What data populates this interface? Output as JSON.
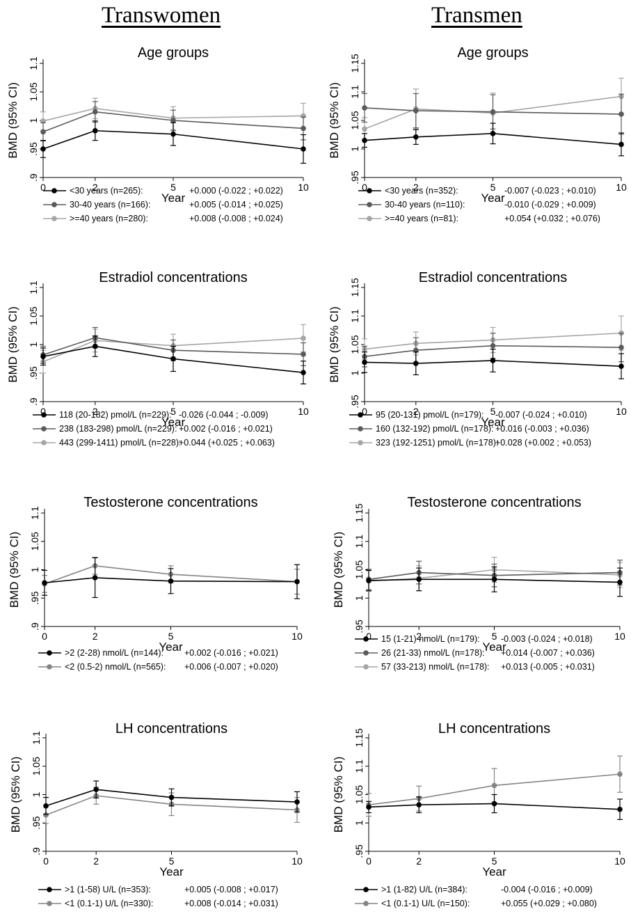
{
  "columns": {
    "left": "Transwomen",
    "right": "Transmen"
  },
  "chart_data": [
    {
      "type": "line",
      "column": "Transwomen",
      "title": "Age groups",
      "xlabel": "Year",
      "ylabel": "BMD (95% CI)",
      "x": [
        0,
        2,
        5,
        10
      ],
      "xticks": [
        "0",
        "2",
        "5",
        "10"
      ],
      "ylim": [
        0.9,
        1.1
      ],
      "yticks": [
        ".9",
        ".95",
        "1",
        "1.05",
        "1.1"
      ],
      "series": [
        {
          "label": "<30 years (n=265):",
          "stats": "+0.000 (-0.022 ; +0.022)",
          "color": "#000000",
          "values": [
            0.95,
            0.982,
            0.976,
            0.95
          ],
          "err": [
            0.015,
            0.017,
            0.02,
            0.025
          ]
        },
        {
          "label": "30-40 years (n=166):",
          "stats": "+0.005 (-0.014 ; +0.025)",
          "color": "#5a5a5a",
          "values": [
            0.98,
            1.015,
            1.0,
            0.986
          ],
          "err": [
            0.016,
            0.018,
            0.018,
            0.02
          ]
        },
        {
          "label": ">=40 years (n=280):",
          "stats": "+0.008 (-0.008 ; +0.024)",
          "color": "#a5a5a5",
          "values": [
            0.999,
            1.021,
            1.004,
            1.008
          ],
          "err": [
            0.016,
            0.018,
            0.02,
            0.022
          ]
        }
      ]
    },
    {
      "type": "line",
      "column": "Transmen",
      "title": "Age groups",
      "xlabel": "Year",
      "ylabel": "BMD (95% CI)",
      "x": [
        0,
        2,
        5,
        10
      ],
      "xticks": [
        "0",
        "2",
        "5",
        "10"
      ],
      "ylim": [
        0.95,
        1.15
      ],
      "yticks": [
        ".95",
        "1",
        "1.05",
        "1.1",
        "1.15"
      ],
      "series": [
        {
          "label": "<30 years (n=352):",
          "stats": "-0.007 (-0.023 ; +0.010)",
          "color": "#000000",
          "values": [
            1.015,
            1.021,
            1.027,
            1.008
          ],
          "err": [
            0.012,
            0.013,
            0.018,
            0.02
          ]
        },
        {
          "label": "30-40 years (n=110):",
          "stats": "-0.010 (-0.029 ; +0.009)",
          "color": "#5a5a5a",
          "values": [
            1.072,
            1.067,
            1.065,
            1.061
          ],
          "err": [
            0.025,
            0.03,
            0.03,
            0.035
          ]
        },
        {
          "label": ">=40 years (n=81):",
          "stats": "+0.054 (+0.032 ; +0.076)",
          "color": "#a5a5a5",
          "values": [
            1.035,
            1.07,
            1.063,
            1.092
          ],
          "err": [
            0.02,
            0.035,
            0.035,
            0.032
          ]
        }
      ]
    },
    {
      "type": "line",
      "column": "Transwomen",
      "title": "Estradiol concentrations",
      "xlabel": "Year",
      "ylabel": "BMD (95% CI)",
      "x": [
        0,
        2,
        5,
        10
      ],
      "xticks": [
        "0",
        "2",
        "5",
        "10"
      ],
      "ylim": [
        0.9,
        1.1
      ],
      "yticks": [
        ".9",
        ".95",
        "1",
        "1.05",
        "1.1"
      ],
      "series": [
        {
          "label": "118 (20-182) pmol/L (n=229):",
          "stats": "-0.026 (-0.044 ; -0.009)",
          "color": "#000000",
          "values": [
            0.979,
            0.997,
            0.975,
            0.951
          ],
          "err": [
            0.015,
            0.018,
            0.022,
            0.02
          ]
        },
        {
          "label": "238 (183-298) pmol/L (n=229):",
          "stats": "+0.002 (-0.016 ; +0.021)",
          "color": "#5a5a5a",
          "values": [
            0.982,
            1.012,
            0.99,
            0.983
          ],
          "err": [
            0.015,
            0.018,
            0.018,
            0.02
          ]
        },
        {
          "label": "443 (299-1411) pmol/L (n=228):",
          "stats": "+0.044 (+0.025 ; +0.063)",
          "color": "#a5a5a5",
          "values": [
            0.97,
            1.007,
            0.998,
            1.011
          ],
          "err": [
            0.02,
            0.02,
            0.02,
            0.024
          ]
        }
      ]
    },
    {
      "type": "line",
      "column": "Transmen",
      "title": "Estradiol concentrations",
      "xlabel": "Year",
      "ylabel": "BMD (95% CI)",
      "x": [
        0,
        2,
        5,
        10
      ],
      "xticks": [
        "0",
        "2",
        "5",
        "10"
      ],
      "ylim": [
        0.95,
        1.15
      ],
      "yticks": [
        ".95",
        "1",
        "1.05",
        "1.1",
        "1.15"
      ],
      "series": [
        {
          "label": "95 (20-131) pmol/L (n=179):",
          "stats": "-0.007 (-0.024 ; +0.010)",
          "color": "#000000",
          "values": [
            1.019,
            1.017,
            1.022,
            1.012
          ],
          "err": [
            0.018,
            0.02,
            0.02,
            0.022
          ]
        },
        {
          "label": "160 (132-192) pmol/L (n=178):",
          "stats": "+0.016 (-0.003 ; +0.036)",
          "color": "#5a5a5a",
          "values": [
            1.029,
            1.04,
            1.048,
            1.045
          ],
          "err": [
            0.018,
            0.022,
            0.022,
            0.025
          ]
        },
        {
          "label": "323 (192-1251) pmol/L (n=178):",
          "stats": "+0.028 (+0.002 ; +0.053)",
          "color": "#a5a5a5",
          "values": [
            1.042,
            1.052,
            1.058,
            1.07
          ],
          "err": [
            0.018,
            0.02,
            0.022,
            0.03
          ]
        }
      ]
    },
    {
      "type": "line",
      "column": "Transwomen",
      "title": "Testosterone concentrations",
      "xlabel": "Year",
      "ylabel": "BMD (95% CI)",
      "x": [
        0,
        2,
        5,
        10
      ],
      "xticks": [
        "0",
        "2",
        "5",
        "10"
      ],
      "ylim": [
        0.9,
        1.1
      ],
      "yticks": [
        ".9",
        ".95",
        "1",
        "1.05",
        "1.1"
      ],
      "series": [
        {
          "label": ">2 (2-28) nmol/L (n=144):",
          "stats": "+0.002 (-0.016 ; +0.021)",
          "color": "#000000",
          "values": [
            0.977,
            0.986,
            0.98,
            0.979
          ],
          "err": [
            0.022,
            0.035,
            0.022,
            0.03
          ]
        },
        {
          "label": "<2 (0.5-2) nmol/L (n=565):",
          "stats": "+0.006 (-0.007 ; +0.020)",
          "color": "#848484",
          "values": [
            0.975,
            1.007,
            0.992,
            0.979
          ],
          "err": [
            0.015,
            0.015,
            0.015,
            0.022
          ]
        }
      ]
    },
    {
      "type": "line",
      "column": "Transmen",
      "title": "Testosterone concentrations",
      "xlabel": "Year",
      "ylabel": "BMD (95% CI)",
      "x": [
        0,
        2,
        5,
        10
      ],
      "xticks": [
        "0",
        "2",
        "5",
        "10"
      ],
      "ylim": [
        0.95,
        1.15
      ],
      "yticks": [
        ".95",
        "1",
        "1.05",
        "1.1",
        "1.15"
      ],
      "series": [
        {
          "label": "15 (1-21) nmol/L (n=179):",
          "stats": "-0.003 (-0.024 ; +0.018)",
          "color": "#000000",
          "values": [
            1.031,
            1.033,
            1.033,
            1.028
          ],
          "err": [
            0.018,
            0.02,
            0.022,
            0.025
          ]
        },
        {
          "label": "26 (21-33) nmol/L (n=178):",
          "stats": "+0.014 (-0.007 ; +0.036)",
          "color": "#5a5a5a",
          "values": [
            1.033,
            1.045,
            1.04,
            1.045
          ],
          "err": [
            0.018,
            0.02,
            0.02,
            0.022
          ]
        },
        {
          "label": "57 (33-213) nmol/L (n=178):",
          "stats": "+0.013 (-0.005 ; +0.031)",
          "color": "#a5a5a5",
          "values": [
            1.03,
            1.035,
            1.05,
            1.041
          ],
          "err": [
            0.018,
            0.022,
            0.022,
            0.022
          ]
        }
      ]
    },
    {
      "type": "line",
      "column": "Transwomen",
      "title": "LH concentrations",
      "xlabel": "Year",
      "ylabel": "BMD (95% CI)",
      "x": [
        0,
        2,
        5,
        10
      ],
      "xticks": [
        "0",
        "2",
        "5",
        "10"
      ],
      "ylim": [
        0.9,
        1.1
      ],
      "yticks": [
        ".9",
        ".95",
        "1",
        "1.05",
        "1.1"
      ],
      "series": [
        {
          "label": ">1 (1-58) U/L (n=353):",
          "stats": "+0.005 (-0.008 ; +0.017)",
          "color": "#000000",
          "values": [
            0.98,
            1.009,
            0.995,
            0.987
          ],
          "err": [
            0.015,
            0.015,
            0.015,
            0.018
          ]
        },
        {
          "label": "<1 (0.1-1) U/L (n=330):",
          "stats": "+0.008 (-0.014 ; +0.031)",
          "color": "#848484",
          "values": [
            0.964,
            0.998,
            0.983,
            0.973
          ],
          "err": [
            0.015,
            0.015,
            0.02,
            0.022
          ]
        }
      ]
    },
    {
      "type": "line",
      "column": "Transmen",
      "title": "LH concentrations",
      "xlabel": "Year",
      "ylabel": "BMD (95% CI)",
      "x": [
        0,
        2,
        5,
        10
      ],
      "xticks": [
        "0",
        "2",
        "5",
        "10"
      ],
      "ylim": [
        0.95,
        1.15
      ],
      "yticks": [
        ".95",
        "1",
        "1.05",
        "1.1",
        "1.15"
      ],
      "series": [
        {
          "label": ">1 (1-82) U/L (n=384):",
          "stats": "-0.004 (-0.016 ; +0.009)",
          "color": "#000000",
          "values": [
            1.028,
            1.032,
            1.034,
            1.024
          ],
          "err": [
            0.01,
            0.014,
            0.016,
            0.018
          ]
        },
        {
          "label": "<1 (0.1-1) U/L (n=150):",
          "stats": "+0.055 (+0.029 ; +0.080)",
          "color": "#848484",
          "values": [
            1.032,
            1.043,
            1.066,
            1.086
          ],
          "err": [
            0.02,
            0.022,
            0.03,
            0.032
          ]
        }
      ]
    }
  ]
}
